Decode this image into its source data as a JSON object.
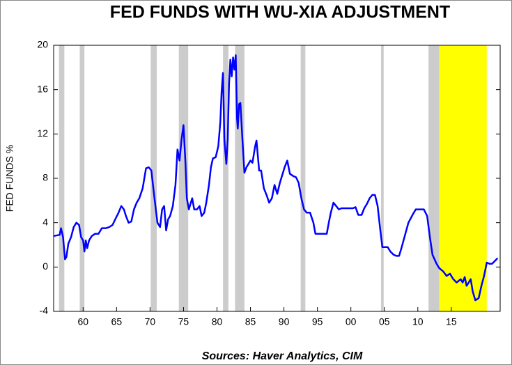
{
  "chart_data": {
    "type": "line",
    "title": "FED FUNDS WITH WU-XIA ADJUSTMENT",
    "y_label": "FED FUNDS %",
    "source": "Sources:  Haver Analytics, CIM",
    "color": "#0000ff",
    "recession_color": "#cccccc",
    "highlight_color": "#ffff00",
    "xlim": [
      1955.6,
      2022.3
    ],
    "ylim": [
      -4,
      20
    ],
    "yticks": [
      -4,
      0,
      4,
      8,
      12,
      16,
      20
    ],
    "xticks": [
      {
        "value": 1960,
        "label": "60"
      },
      {
        "value": 1965,
        "label": "65"
      },
      {
        "value": 1970,
        "label": "70"
      },
      {
        "value": 1975,
        "label": "75"
      },
      {
        "value": 1980,
        "label": "80"
      },
      {
        "value": 1985,
        "label": "85"
      },
      {
        "value": 1990,
        "label": "90"
      },
      {
        "value": 1995,
        "label": "95"
      },
      {
        "value": 2000,
        "label": "00"
      },
      {
        "value": 2005,
        "label": "05"
      },
      {
        "value": 2010,
        "label": "10"
      },
      {
        "value": 2015,
        "label": "15"
      }
    ],
    "recessions": [
      [
        1956.4,
        1957.2
      ],
      [
        1959.5,
        1960.2
      ],
      [
        1970.1,
        1971.0
      ],
      [
        1974.3,
        1975.7
      ],
      [
        1980.9,
        1981.7
      ],
      [
        1982.7,
        1984.1
      ],
      [
        1992.5,
        1993.2
      ],
      [
        2004.5,
        2004.9
      ],
      [
        2011.6,
        2013.2
      ]
    ],
    "highlight": [
      2013.2,
      2020.3
    ],
    "x": [
      1955.6,
      1956.5,
      1956.7,
      1957.0,
      1957.3,
      1957.5,
      1957.8,
      1958.2,
      1958.6,
      1959.0,
      1959.4,
      1959.7,
      1960.0,
      1960.2,
      1960.4,
      1960.6,
      1960.9,
      1961.3,
      1961.8,
      1962.3,
      1962.8,
      1963.4,
      1963.9,
      1964.4,
      1964.8,
      1965.3,
      1965.7,
      1966.1,
      1966.4,
      1966.8,
      1967.2,
      1967.6,
      1968.0,
      1968.4,
      1968.9,
      1969.4,
      1969.8,
      1970.2,
      1970.6,
      1971.1,
      1971.5,
      1971.8,
      1972.1,
      1972.4,
      1972.7,
      1973.0,
      1973.4,
      1973.8,
      1974.1,
      1974.4,
      1974.7,
      1975.0,
      1975.3,
      1975.5,
      1975.8,
      1976.3,
      1976.6,
      1977.0,
      1977.4,
      1977.7,
      1978.1,
      1978.4,
      1978.8,
      1979.1,
      1979.4,
      1979.8,
      1980.2,
      1980.5,
      1980.7,
      1980.9,
      1981.1,
      1981.4,
      1981.6,
      1981.8,
      1982.0,
      1982.2,
      1982.4,
      1982.6,
      1982.8,
      1983.0,
      1983.1,
      1983.3,
      1983.5,
      1983.8,
      1984.1,
      1984.4,
      1984.7,
      1985.0,
      1985.3,
      1985.7,
      1985.9,
      1986.3,
      1986.6,
      1987.0,
      1987.4,
      1987.8,
      1988.2,
      1988.6,
      1989.0,
      1989.4,
      1989.8,
      1990.1,
      1990.5,
      1990.9,
      1991.4,
      1991.8,
      1992.2,
      1992.6,
      1993.0,
      1993.4,
      1993.9,
      1994.4,
      1994.7,
      1995.1,
      1995.5,
      1995.9,
      1996.4,
      1996.7,
      1997.0,
      1997.4,
      1997.8,
      1998.2,
      1998.6,
      1999.1,
      1999.5,
      1999.9,
      2000.3,
      2000.7,
      2001.1,
      2001.6,
      2002.0,
      2002.4,
      2002.8,
      2003.2,
      2003.6,
      2004.0,
      2004.4,
      2004.7,
      2005.1,
      2005.5,
      2005.9,
      2006.4,
      2006.8,
      2007.2,
      2007.6,
      2008.0,
      2008.6,
      2009.3,
      2009.7,
      2010.1,
      2010.5,
      2010.9,
      2011.4,
      2011.8,
      2012.2,
      2012.5,
      2012.8,
      2013.2,
      2013.8,
      2014.3,
      2014.8,
      2015.3,
      2015.8,
      2016.4,
      2016.7,
      2017.0,
      2017.3,
      2017.6,
      2017.9,
      2018.2,
      2018.6,
      2019.1,
      2019.5,
      2019.9,
      2020.3,
      2020.7,
      2021.1,
      2021.6,
      2021.9
    ],
    "values": [
      2.8,
      2.9,
      3.5,
      2.7,
      0.7,
      0.9,
      2.1,
      2.7,
      3.6,
      4.0,
      3.8,
      2.7,
      2.4,
      1.4,
      2.4,
      1.7,
      2.4,
      2.8,
      3.0,
      3.0,
      3.5,
      3.5,
      3.6,
      3.8,
      4.3,
      4.9,
      5.5,
      5.2,
      4.6,
      4.0,
      4.1,
      5.2,
      5.8,
      6.2,
      7.1,
      8.9,
      9.0,
      8.7,
      6.5,
      4.0,
      3.6,
      5.2,
      5.5,
      3.3,
      4.3,
      4.6,
      5.5,
      7.4,
      10.6,
      9.6,
      11.5,
      12.8,
      9.3,
      6.2,
      5.2,
      6.2,
      5.2,
      5.2,
      5.5,
      4.6,
      4.9,
      5.8,
      7.4,
      9.0,
      9.8,
      9.9,
      10.9,
      13.1,
      15.9,
      17.5,
      11.5,
      9.3,
      11.5,
      16.5,
      18.7,
      17.2,
      18.9,
      17.8,
      19.1,
      13.4,
      12.5,
      14.7,
      14.8,
      11.5,
      8.5,
      9.0,
      9.3,
      9.6,
      9.4,
      10.9,
      11.4,
      8.7,
      8.7,
      7.1,
      6.5,
      5.8,
      6.2,
      7.4,
      6.6,
      7.6,
      8.4,
      9.0,
      9.6,
      8.4,
      8.2,
      8.1,
      7.6,
      6.2,
      5.2,
      4.9,
      4.9,
      4.0,
      3.0,
      3.0,
      3.0,
      3.0,
      3.0,
      4.0,
      4.9,
      5.8,
      5.5,
      5.2,
      5.3,
      5.3,
      5.3,
      5.3,
      5.3,
      5.4,
      4.7,
      4.7,
      5.3,
      5.7,
      6.2,
      6.5,
      6.5,
      5.5,
      3.3,
      1.8,
      1.8,
      1.8,
      1.4,
      1.1,
      1.0,
      1.0,
      1.8,
      2.7,
      4.0,
      4.8,
      5.2,
      5.2,
      5.2,
      5.2,
      4.6,
      2.7,
      1.1,
      0.7,
      0.3,
      -0.1,
      -0.4,
      -0.8,
      -0.6,
      -1.1,
      -1.4,
      -1.1,
      -1.4,
      -0.9,
      -1.7,
      -1.4,
      -1.1,
      -2.2,
      -3.0,
      -2.8,
      -1.7,
      -0.8,
      0.4,
      0.3,
      0.3,
      0.6,
      0.8
    ]
  }
}
